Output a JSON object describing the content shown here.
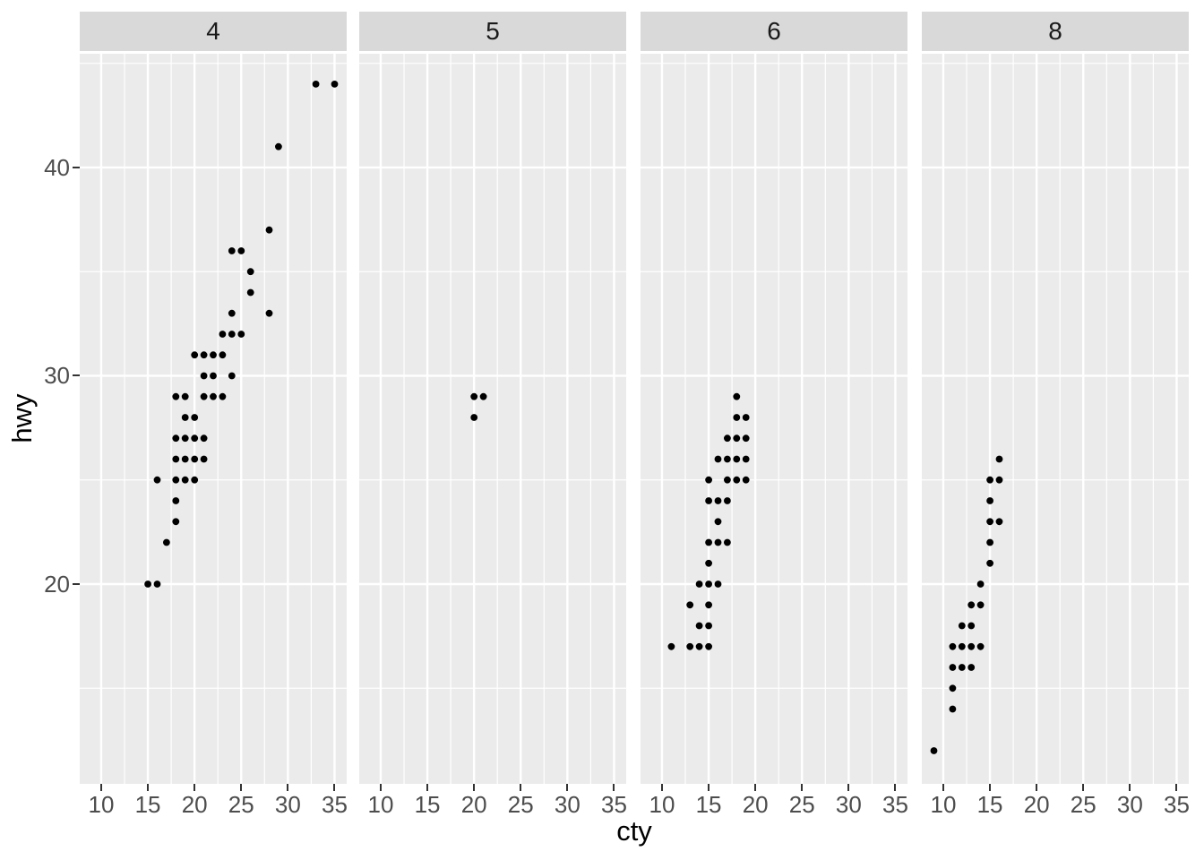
{
  "chart_data": {
    "type": "scatter",
    "title": "",
    "xlabel": "cty",
    "ylabel": "hwy",
    "facet_variable_values": [
      "4",
      "5",
      "6",
      "8"
    ],
    "x_ticks": [
      10,
      15,
      20,
      25,
      30,
      35
    ],
    "x_minor": [
      12.5,
      17.5,
      22.5,
      27.5,
      32.5
    ],
    "y_ticks": [
      20,
      30,
      40
    ],
    "y_minor": [
      15,
      25,
      35,
      45
    ],
    "x_domain": [
      7.7,
      36.3
    ],
    "y_domain": [
      10.41,
      45.46
    ],
    "grid": "white major+minor gridlines on grey panel",
    "legend": "none",
    "facets": [
      {
        "label": "4",
        "points": [
          [
            33,
            44
          ],
          [
            35,
            44
          ],
          [
            29,
            41
          ],
          [
            28,
            37
          ],
          [
            24,
            36
          ],
          [
            25,
            36
          ],
          [
            26,
            35
          ],
          [
            26,
            34
          ],
          [
            24,
            33
          ],
          [
            28,
            33
          ],
          [
            23,
            32
          ],
          [
            24,
            32
          ],
          [
            25,
            32
          ],
          [
            20,
            31
          ],
          [
            21,
            31
          ],
          [
            22,
            31
          ],
          [
            23,
            31
          ],
          [
            21,
            30
          ],
          [
            22,
            30
          ],
          [
            24,
            30
          ],
          [
            18,
            29
          ],
          [
            19,
            29
          ],
          [
            21,
            29
          ],
          [
            22,
            29
          ],
          [
            23,
            29
          ],
          [
            19,
            28
          ],
          [
            20,
            28
          ],
          [
            18,
            27
          ],
          [
            19,
            27
          ],
          [
            20,
            27
          ],
          [
            21,
            27
          ],
          [
            18,
            26
          ],
          [
            19,
            26
          ],
          [
            20,
            26
          ],
          [
            21,
            26
          ],
          [
            16,
            25
          ],
          [
            18,
            25
          ],
          [
            19,
            25
          ],
          [
            20,
            25
          ],
          [
            18,
            24
          ],
          [
            18,
            23
          ],
          [
            17,
            22
          ],
          [
            15,
            20
          ],
          [
            16,
            20
          ]
        ]
      },
      {
        "label": "5",
        "points": [
          [
            20,
            29
          ],
          [
            21,
            29
          ],
          [
            20,
            28
          ]
        ]
      },
      {
        "label": "6",
        "points": [
          [
            18,
            29
          ],
          [
            18,
            28
          ],
          [
            19,
            28
          ],
          [
            17,
            27
          ],
          [
            18,
            27
          ],
          [
            19,
            27
          ],
          [
            16,
            26
          ],
          [
            17,
            26
          ],
          [
            18,
            26
          ],
          [
            19,
            26
          ],
          [
            15,
            25
          ],
          [
            17,
            25
          ],
          [
            18,
            25
          ],
          [
            19,
            25
          ],
          [
            15,
            24
          ],
          [
            16,
            24
          ],
          [
            17,
            24
          ],
          [
            16,
            23
          ],
          [
            15,
            22
          ],
          [
            16,
            22
          ],
          [
            17,
            22
          ],
          [
            15,
            21
          ],
          [
            14,
            20
          ],
          [
            15,
            20
          ],
          [
            16,
            20
          ],
          [
            13,
            19
          ],
          [
            15,
            19
          ],
          [
            14,
            18
          ],
          [
            15,
            18
          ],
          [
            11,
            17
          ],
          [
            13,
            17
          ],
          [
            14,
            17
          ],
          [
            15,
            17
          ]
        ]
      },
      {
        "label": "8",
        "points": [
          [
            16,
            26
          ],
          [
            15,
            25
          ],
          [
            16,
            25
          ],
          [
            15,
            24
          ],
          [
            15,
            23
          ],
          [
            16,
            23
          ],
          [
            15,
            22
          ],
          [
            15,
            21
          ],
          [
            14,
            20
          ],
          [
            13,
            19
          ],
          [
            14,
            19
          ],
          [
            12,
            18
          ],
          [
            13,
            18
          ],
          [
            11,
            17
          ],
          [
            12,
            17
          ],
          [
            13,
            17
          ],
          [
            14,
            17
          ],
          [
            11,
            16
          ],
          [
            12,
            16
          ],
          [
            13,
            16
          ],
          [
            11,
            15
          ],
          [
            11,
            14
          ],
          [
            9,
            12
          ]
        ]
      }
    ]
  },
  "colors": {
    "background": "#FFFFFF",
    "panel_background": "#EBEBEB",
    "strip_background": "#D9D9D9",
    "gridline": "#FFFFFF",
    "point": "#000000",
    "tick_mark": "#333333",
    "tick_label": "#4D4D4D",
    "strip_text": "#1A1A1A",
    "axis_title": "#000000"
  }
}
